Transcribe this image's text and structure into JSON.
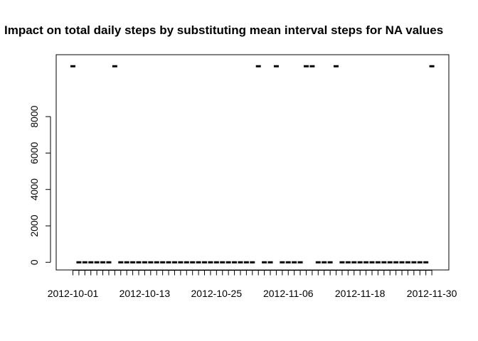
{
  "chart_data": {
    "type": "bar",
    "title": "Impact on total daily steps by substituting mean interval steps for NA values",
    "xlabel": "",
    "ylabel": "",
    "start_date": "2012-10-01",
    "x_tick_labels": [
      "2012-10-01",
      "2012-10-13",
      "2012-10-25",
      "2012-11-06",
      "2012-11-18",
      "2012-11-30"
    ],
    "y_ticks": [
      0,
      2000,
      4000,
      6000,
      8000
    ],
    "y_tick_labels": [
      "0",
      "2000",
      "4000",
      "6000",
      "8000"
    ],
    "ylim": [
      -420,
      11400
    ],
    "series": [
      {
        "values": [
          10766,
          0,
          0,
          0,
          0,
          0,
          0,
          10766,
          0,
          0,
          0,
          0,
          0,
          0,
          0,
          0,
          0,
          0,
          0,
          0,
          0,
          0,
          0,
          0,
          0,
          0,
          0,
          0,
          0,
          0,
          0,
          10766,
          0,
          0,
          10766,
          0,
          0,
          0,
          0,
          10766,
          10766,
          0,
          0,
          0,
          10766,
          0,
          0,
          0,
          0,
          0,
          0,
          0,
          0,
          0,
          0,
          0,
          0,
          0,
          0,
          0,
          10766
        ]
      }
    ]
  }
}
